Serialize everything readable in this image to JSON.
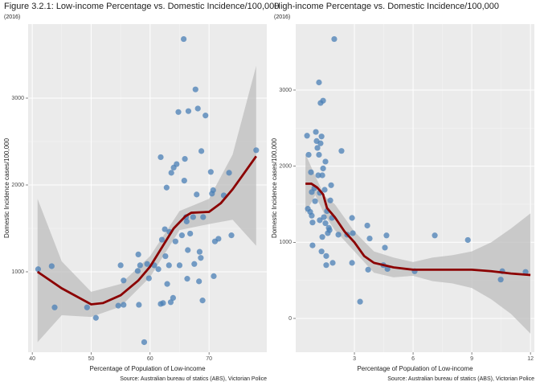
{
  "chart_data": [
    {
      "type": "scatter",
      "title": "Figure 3.2.1: Low-income Percentage vs. Domestic Incidence/100,000",
      "subtitle": "(2016)",
      "x_label": "Percentage of Population of Low-income",
      "y_label": "Domestic Incidence cases/100,000",
      "caption": "Source: Australian bureau of statics (ABS), Victorian Police",
      "xlim": [
        39.3,
        79.8
      ],
      "ylim": [
        74,
        3852
      ],
      "xticks": [
        40,
        50,
        60,
        70
      ],
      "yticks": [
        1000,
        2000,
        3000
      ],
      "grid": true,
      "points": {
        "color": "#4a7fb5",
        "x": [
          41,
          43.3,
          43.8,
          49.3,
          50.8,
          55,
          55.5,
          54.6,
          55.5,
          57.9,
          58,
          58.3,
          58.1,
          59,
          59.5,
          59.8,
          60.7,
          61.4,
          61.8,
          62.2,
          61.8,
          62,
          62.5,
          62.6,
          62.8,
          62.9,
          63.2,
          63.3,
          63.5,
          63.6,
          63.9,
          64,
          64.3,
          64.5,
          64.8,
          65,
          65.4,
          65.7,
          65.8,
          65.9,
          66.1,
          66.2,
          66.3,
          66.4,
          66.5,
          66.8,
          67.3,
          67.5,
          67.7,
          67.9,
          68.1,
          68.3,
          68.4,
          68.6,
          68.7,
          68.9,
          69,
          69.4,
          70.3,
          70.5,
          70.7,
          70.8,
          71,
          71.6,
          72.5,
          73.4,
          73.8,
          78
        ],
        "y": [
          1030,
          1065,
          590,
          590,
          470,
          1075,
          900,
          610,
          620,
          1010,
          1200,
          1075,
          620,
          190,
          1090,
          925,
          1075,
          1030,
          630,
          640,
          2320,
          1370,
          1490,
          1180,
          1970,
          860,
          1075,
          1460,
          650,
          2140,
          700,
          2200,
          1350,
          2240,
          2840,
          1075,
          1420,
          3680,
          2050,
          2300,
          1630,
          1580,
          920,
          1250,
          2850,
          1440,
          1630,
          1090,
          3100,
          1890,
          2880,
          890,
          1230,
          1160,
          2390,
          670,
          1630,
          2800,
          2150,
          1900,
          1940,
          950,
          1350,
          1380,
          1880,
          2140,
          1420,
          2400
        ]
      },
      "smooth": {
        "color": "#8b0000",
        "x": [
          40.9,
          45,
          50,
          52,
          55,
          58,
          60,
          62,
          64,
          66,
          67,
          70,
          72,
          74,
          76,
          78
        ],
        "y": [
          1000,
          810,
          625,
          640,
          730,
          900,
          1060,
          1280,
          1500,
          1640,
          1680,
          1690,
          1790,
          1950,
          2140,
          2330
        ]
      },
      "band": {
        "color": "#bdbdbd",
        "x": [
          40.9,
          45,
          50,
          55,
          60,
          65,
          70,
          74,
          78
        ],
        "lower": [
          190,
          500,
          480,
          600,
          940,
          1480,
          1550,
          1600,
          1300
        ],
        "upper": [
          1840,
          1120,
          770,
          860,
          1180,
          1700,
          1840,
          2350,
          3370
        ]
      }
    },
    {
      "type": "scatter",
      "title": "High-income Percentage vs. Domestic Incidence/100,000",
      "subtitle": "(2016)",
      "x_label": "Percentage of Population of Low-income",
      "y_label": "Domestic Incidence cases/100,000",
      "caption": "Source: Australian bureau of statics (ABS), Victorian Police",
      "xlim": [
        0,
        12.2
      ],
      "ylim": [
        -444,
        3866
      ],
      "xticks": [
        3,
        6,
        9,
        12
      ],
      "yticks": [
        0,
        1000,
        2000,
        3000
      ],
      "grid": true,
      "points": {
        "color": "#4a7fb5",
        "x": [
          0.58,
          0.66,
          0.62,
          0.74,
          0.78,
          0.82,
          0.82,
          0.86,
          0.86,
          0.95,
          0.99,
          1.03,
          1.07,
          1.11,
          1.15,
          1.19,
          1.19,
          1.23,
          1.23,
          1.27,
          1.27,
          1.32,
          1.32,
          1.36,
          1.36,
          1.4,
          1.4,
          1.44,
          1.48,
          1.52,
          1.52,
          1.56,
          1.56,
          1.6,
          1.64,
          1.69,
          1.73,
          1.77,
          1.81,
          1.85,
          1.89,
          1.97,
          2.18,
          2.34,
          2.63,
          2.88,
          2.92,
          2.88,
          3.29,
          3.66,
          3.7,
          3.78,
          4.48,
          4.56,
          4.64,
          4.69,
          6.08,
          7.11,
          8.8,
          10.48,
          10.56,
          11.75
        ],
        "y": [
          2400,
          2150,
          1440,
          1400,
          1920,
          1660,
          1350,
          960,
          1260,
          1710,
          1540,
          2450,
          2330,
          2240,
          1880,
          3100,
          2150,
          1290,
          1650,
          2830,
          2300,
          2390,
          880,
          1070,
          1880,
          2860,
          1970,
          1330,
          1690,
          1250,
          2060,
          820,
          700,
          1410,
          1120,
          1190,
          1160,
          1550,
          1750,
          1320,
          730,
          3670,
          1100,
          2200,
          1100,
          1320,
          1120,
          730,
          220,
          1220,
          640,
          1050,
          700,
          930,
          1090,
          650,
          620,
          1090,
          1030,
          510,
          620,
          610
        ]
      },
      "smooth": {
        "color": "#8b0000",
        "x": [
          0.5,
          0.8,
          1.1,
          1.4,
          1.6,
          2,
          2.5,
          3,
          3.5,
          4,
          5,
          6,
          7,
          8,
          9,
          10,
          11,
          12
        ],
        "y": [
          1770,
          1770,
          1720,
          1630,
          1450,
          1330,
          1140,
          1000,
          820,
          730,
          670,
          640,
          640,
          640,
          640,
          620,
          590,
          570
        ]
      },
      "band": {
        "color": "#bdbdbd",
        "x": [
          0.5,
          1,
          1.5,
          2,
          3,
          4,
          5,
          6,
          7,
          8,
          9,
          10,
          11,
          12
        ],
        "lower": [
          1380,
          1620,
          1350,
          1160,
          880,
          600,
          540,
          560,
          490,
          460,
          400,
          250,
          60,
          -200
        ],
        "upper": [
          2160,
          1870,
          1600,
          1500,
          1140,
          880,
          800,
          740,
          800,
          830,
          880,
          1000,
          1180,
          1380
        ]
      }
    }
  ]
}
